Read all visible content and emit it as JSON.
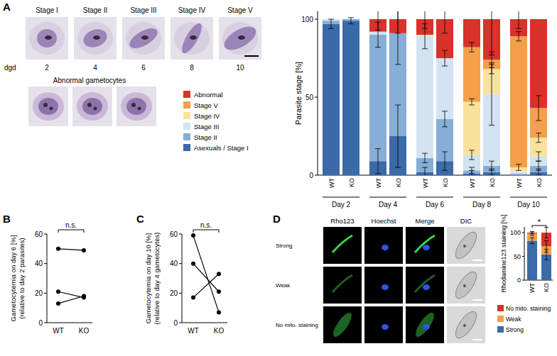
{
  "figure": {
    "panel_labels": [
      "A",
      "B",
      "C",
      "D"
    ],
    "stage_images": {
      "labels": [
        "Stage I",
        "Stage II",
        "Stage III",
        "Stage IV",
        "Stage V"
      ],
      "dgd_label": "dgd",
      "dgd": [
        2,
        4,
        6,
        8,
        10
      ],
      "abnormal_label": "Abnormal gametocytes"
    },
    "staining_images": {
      "columns": [
        "Rho123",
        "Hoechst",
        "Merge",
        "DIC"
      ],
      "rows": [
        "Strong",
        "Weak",
        "No mito. staining"
      ]
    }
  },
  "chart_data": [
    {
      "type": "bar",
      "stacked": true,
      "ylabel": "Parasite stage [%]",
      "categories": [
        "WT",
        "KO",
        "WT",
        "KO",
        "WT",
        "KO",
        "WT",
        "KO",
        "WT",
        "KO"
      ],
      "groups": [
        "Day 2",
        "Day 4",
        "Day 6",
        "Day 8",
        "Day 10"
      ],
      "ylim": [
        0,
        105
      ],
      "yticks": [
        0,
        50,
        100
      ],
      "legend": "left",
      "series": [
        {
          "name": "Asexuals / Stage I",
          "color": "#3b6aa8",
          "values": [
            97,
            99,
            9,
            25,
            2,
            9,
            1,
            2,
            0,
            2
          ],
          "errors": [
            3,
            2,
            8,
            20,
            3,
            6,
            2,
            2,
            null,
            2
          ]
        },
        {
          "name": "Stage II",
          "color": "#86aed6",
          "values": [
            2,
            1,
            81,
            66,
            9,
            27,
            2,
            4,
            1,
            4
          ],
          "errors": [
            null,
            null,
            8,
            20,
            3,
            5,
            2,
            3,
            null,
            3
          ]
        },
        {
          "name": "Stage III",
          "color": "#d3e3f2",
          "values": [
            1,
            0,
            2,
            0,
            78,
            39,
            10,
            46,
            1,
            6
          ],
          "errors": [
            null,
            null,
            null,
            null,
            8,
            5,
            3,
            20,
            null,
            3
          ]
        },
        {
          "name": "Stage IV",
          "color": "#f9e39c",
          "values": [
            0,
            0,
            0,
            0,
            1,
            0,
            34,
            16,
            3,
            12
          ],
          "errors": [
            null,
            null,
            null,
            null,
            null,
            null,
            2,
            3,
            2,
            3
          ]
        },
        {
          "name": "Stage V",
          "color": "#f4a04a",
          "values": [
            0,
            0,
            0,
            0,
            0,
            0,
            35,
            6,
            84,
            19
          ],
          "errors": [
            null,
            null,
            null,
            null,
            null,
            null,
            3,
            5,
            3,
            8
          ]
        },
        {
          "name": "Abnormal",
          "color": "#d8322a",
          "values": [
            0,
            0,
            8,
            9,
            10,
            25,
            18,
            26,
            11,
            57
          ],
          "errors": [
            null,
            null,
            7,
            9,
            6,
            9,
            null,
            23,
            6,
            null
          ]
        }
      ]
    },
    {
      "type": "line",
      "ylabel": "Gametocytemia on day 6 [%]",
      "ylabel2": "(relative to day 2 parasites)",
      "categories": [
        "WT",
        "KO"
      ],
      "ylim": [
        0,
        60
      ],
      "yticks": [
        0,
        20,
        40,
        60
      ],
      "color": "#000000",
      "marker": "circle",
      "annotations": [
        "n.s."
      ],
      "series": [
        {
          "values": [
            50,
            49
          ]
        },
        {
          "values": [
            21,
            17
          ]
        },
        {
          "values": [
            13,
            18
          ]
        }
      ]
    },
    {
      "type": "line",
      "ylabel": "Gametocytemia on day 10 [%]",
      "ylabel2": "(relative to day 4 gametocytes)",
      "categories": [
        "WT",
        "KO"
      ],
      "ylim": [
        0,
        60
      ],
      "yticks": [
        0,
        20,
        40,
        60
      ],
      "color": "#000000",
      "marker": "circle",
      "annotations": [
        "n.s."
      ],
      "series": [
        {
          "values": [
            59,
            7
          ]
        },
        {
          "values": [
            40,
            21
          ]
        },
        {
          "values": [
            17,
            33
          ]
        }
      ]
    },
    {
      "type": "bar",
      "stacked": true,
      "ylabel": "Rhodamine123 staining [%]",
      "categories": [
        "WT",
        "KO"
      ],
      "ylim": [
        0,
        112
      ],
      "yticks": [
        0,
        50,
        100
      ],
      "legend": "bottom",
      "annotations": [
        "*"
      ],
      "series": [
        {
          "name": "Strong",
          "color": "#3b6aa8",
          "values": [
            83,
            54
          ],
          "errors": [
            6,
            11
          ]
        },
        {
          "name": "Weak",
          "color": "#f4a04a",
          "values": [
            15,
            17
          ],
          "errors": [
            4,
            12
          ]
        },
        {
          "name": "No mito. staining",
          "color": "#d8322a",
          "values": [
            2,
            29
          ],
          "errors": [
            2,
            11
          ]
        }
      ]
    }
  ]
}
